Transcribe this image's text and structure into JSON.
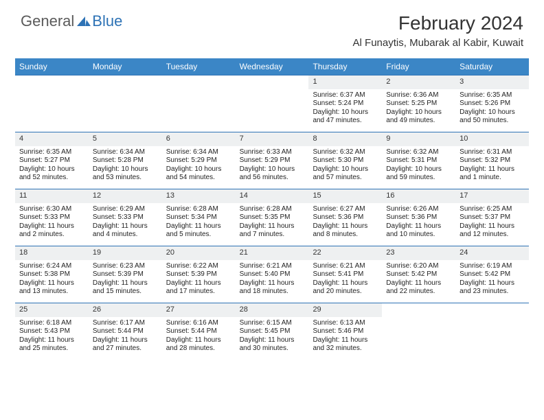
{
  "logo": {
    "general": "General",
    "blue": "Blue"
  },
  "title": "February 2024",
  "location": "Al Funaytis, Mubarak al Kabir, Kuwait",
  "colors": {
    "header_bg": "#3b86c6",
    "week_border": "#2d72b5",
    "daynum_bg": "#eef0f1",
    "logo_gray": "#5a5a5a",
    "logo_blue": "#2d72b5"
  },
  "weekdays": [
    "Sunday",
    "Monday",
    "Tuesday",
    "Wednesday",
    "Thursday",
    "Friday",
    "Saturday"
  ],
  "weeks": [
    [
      {
        "n": "",
        "sr": "",
        "ss": "",
        "dl": ""
      },
      {
        "n": "",
        "sr": "",
        "ss": "",
        "dl": ""
      },
      {
        "n": "",
        "sr": "",
        "ss": "",
        "dl": ""
      },
      {
        "n": "",
        "sr": "",
        "ss": "",
        "dl": ""
      },
      {
        "n": "1",
        "sr": "Sunrise: 6:37 AM",
        "ss": "Sunset: 5:24 PM",
        "dl": "Daylight: 10 hours and 47 minutes."
      },
      {
        "n": "2",
        "sr": "Sunrise: 6:36 AM",
        "ss": "Sunset: 5:25 PM",
        "dl": "Daylight: 10 hours and 49 minutes."
      },
      {
        "n": "3",
        "sr": "Sunrise: 6:35 AM",
        "ss": "Sunset: 5:26 PM",
        "dl": "Daylight: 10 hours and 50 minutes."
      }
    ],
    [
      {
        "n": "4",
        "sr": "Sunrise: 6:35 AM",
        "ss": "Sunset: 5:27 PM",
        "dl": "Daylight: 10 hours and 52 minutes."
      },
      {
        "n": "5",
        "sr": "Sunrise: 6:34 AM",
        "ss": "Sunset: 5:28 PM",
        "dl": "Daylight: 10 hours and 53 minutes."
      },
      {
        "n": "6",
        "sr": "Sunrise: 6:34 AM",
        "ss": "Sunset: 5:29 PM",
        "dl": "Daylight: 10 hours and 54 minutes."
      },
      {
        "n": "7",
        "sr": "Sunrise: 6:33 AM",
        "ss": "Sunset: 5:29 PM",
        "dl": "Daylight: 10 hours and 56 minutes."
      },
      {
        "n": "8",
        "sr": "Sunrise: 6:32 AM",
        "ss": "Sunset: 5:30 PM",
        "dl": "Daylight: 10 hours and 57 minutes."
      },
      {
        "n": "9",
        "sr": "Sunrise: 6:32 AM",
        "ss": "Sunset: 5:31 PM",
        "dl": "Daylight: 10 hours and 59 minutes."
      },
      {
        "n": "10",
        "sr": "Sunrise: 6:31 AM",
        "ss": "Sunset: 5:32 PM",
        "dl": "Daylight: 11 hours and 1 minute."
      }
    ],
    [
      {
        "n": "11",
        "sr": "Sunrise: 6:30 AM",
        "ss": "Sunset: 5:33 PM",
        "dl": "Daylight: 11 hours and 2 minutes."
      },
      {
        "n": "12",
        "sr": "Sunrise: 6:29 AM",
        "ss": "Sunset: 5:33 PM",
        "dl": "Daylight: 11 hours and 4 minutes."
      },
      {
        "n": "13",
        "sr": "Sunrise: 6:28 AM",
        "ss": "Sunset: 5:34 PM",
        "dl": "Daylight: 11 hours and 5 minutes."
      },
      {
        "n": "14",
        "sr": "Sunrise: 6:28 AM",
        "ss": "Sunset: 5:35 PM",
        "dl": "Daylight: 11 hours and 7 minutes."
      },
      {
        "n": "15",
        "sr": "Sunrise: 6:27 AM",
        "ss": "Sunset: 5:36 PM",
        "dl": "Daylight: 11 hours and 8 minutes."
      },
      {
        "n": "16",
        "sr": "Sunrise: 6:26 AM",
        "ss": "Sunset: 5:36 PM",
        "dl": "Daylight: 11 hours and 10 minutes."
      },
      {
        "n": "17",
        "sr": "Sunrise: 6:25 AM",
        "ss": "Sunset: 5:37 PM",
        "dl": "Daylight: 11 hours and 12 minutes."
      }
    ],
    [
      {
        "n": "18",
        "sr": "Sunrise: 6:24 AM",
        "ss": "Sunset: 5:38 PM",
        "dl": "Daylight: 11 hours and 13 minutes."
      },
      {
        "n": "19",
        "sr": "Sunrise: 6:23 AM",
        "ss": "Sunset: 5:39 PM",
        "dl": "Daylight: 11 hours and 15 minutes."
      },
      {
        "n": "20",
        "sr": "Sunrise: 6:22 AM",
        "ss": "Sunset: 5:39 PM",
        "dl": "Daylight: 11 hours and 17 minutes."
      },
      {
        "n": "21",
        "sr": "Sunrise: 6:21 AM",
        "ss": "Sunset: 5:40 PM",
        "dl": "Daylight: 11 hours and 18 minutes."
      },
      {
        "n": "22",
        "sr": "Sunrise: 6:21 AM",
        "ss": "Sunset: 5:41 PM",
        "dl": "Daylight: 11 hours and 20 minutes."
      },
      {
        "n": "23",
        "sr": "Sunrise: 6:20 AM",
        "ss": "Sunset: 5:42 PM",
        "dl": "Daylight: 11 hours and 22 minutes."
      },
      {
        "n": "24",
        "sr": "Sunrise: 6:19 AM",
        "ss": "Sunset: 5:42 PM",
        "dl": "Daylight: 11 hours and 23 minutes."
      }
    ],
    [
      {
        "n": "25",
        "sr": "Sunrise: 6:18 AM",
        "ss": "Sunset: 5:43 PM",
        "dl": "Daylight: 11 hours and 25 minutes."
      },
      {
        "n": "26",
        "sr": "Sunrise: 6:17 AM",
        "ss": "Sunset: 5:44 PM",
        "dl": "Daylight: 11 hours and 27 minutes."
      },
      {
        "n": "27",
        "sr": "Sunrise: 6:16 AM",
        "ss": "Sunset: 5:44 PM",
        "dl": "Daylight: 11 hours and 28 minutes."
      },
      {
        "n": "28",
        "sr": "Sunrise: 6:15 AM",
        "ss": "Sunset: 5:45 PM",
        "dl": "Daylight: 11 hours and 30 minutes."
      },
      {
        "n": "29",
        "sr": "Sunrise: 6:13 AM",
        "ss": "Sunset: 5:46 PM",
        "dl": "Daylight: 11 hours and 32 minutes."
      },
      {
        "n": "",
        "sr": "",
        "ss": "",
        "dl": ""
      },
      {
        "n": "",
        "sr": "",
        "ss": "",
        "dl": ""
      }
    ]
  ]
}
